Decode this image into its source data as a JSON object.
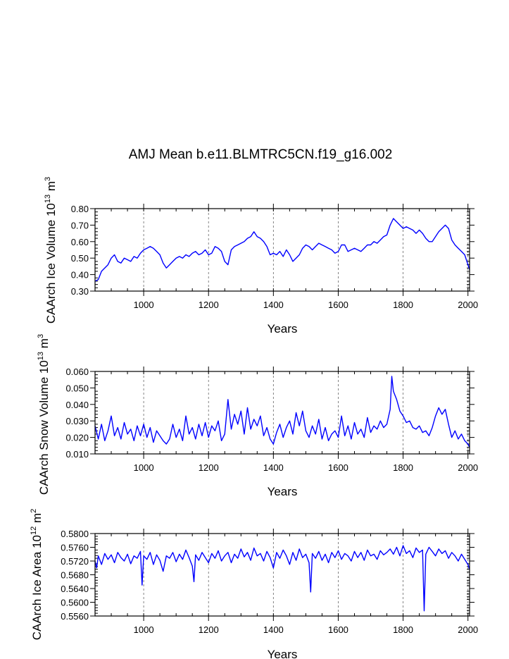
{
  "title": "AMJ Mean b.e11.BLMTRC5CN.f19_g16.002",
  "series_color": "#0000ff",
  "chart_data": [
    {
      "type": "line",
      "name": "ice-volume",
      "ylabel": "CAArch Ice Volume 10",
      "ylabel_sup": "13",
      "ylabel_unit": " m",
      "ylabel_unit_sup": "3",
      "xlabel": "Years",
      "xlim": [
        850,
        2005
      ],
      "ylim": [
        0.3,
        0.8
      ],
      "yticks": [
        "0.30",
        "0.40",
        "0.50",
        "0.60",
        "0.70",
        "0.80"
      ],
      "xticks": [
        "1000",
        "1200",
        "1400",
        "1600",
        "1800",
        "2000"
      ],
      "grid_x": [
        1000,
        1200,
        1400,
        1600,
        1800,
        2000
      ],
      "x": [
        850,
        860,
        870,
        880,
        890,
        900,
        910,
        920,
        930,
        940,
        950,
        960,
        970,
        980,
        990,
        1000,
        1010,
        1020,
        1030,
        1040,
        1050,
        1060,
        1070,
        1080,
        1090,
        1100,
        1110,
        1120,
        1130,
        1140,
        1150,
        1160,
        1170,
        1180,
        1190,
        1200,
        1210,
        1220,
        1230,
        1240,
        1250,
        1260,
        1270,
        1280,
        1290,
        1300,
        1310,
        1320,
        1330,
        1340,
        1350,
        1360,
        1370,
        1380,
        1390,
        1400,
        1410,
        1420,
        1430,
        1440,
        1450,
        1460,
        1470,
        1480,
        1490,
        1500,
        1510,
        1520,
        1530,
        1540,
        1550,
        1560,
        1570,
        1580,
        1590,
        1600,
        1610,
        1620,
        1630,
        1640,
        1650,
        1660,
        1670,
        1680,
        1690,
        1700,
        1710,
        1720,
        1730,
        1740,
        1750,
        1760,
        1770,
        1780,
        1790,
        1800,
        1810,
        1820,
        1830,
        1840,
        1850,
        1860,
        1870,
        1880,
        1890,
        1900,
        1910,
        1920,
        1930,
        1940,
        1950,
        1960,
        1970,
        1980,
        1990,
        2000,
        2005
      ],
      "values": [
        0.36,
        0.37,
        0.42,
        0.44,
        0.46,
        0.5,
        0.52,
        0.48,
        0.47,
        0.5,
        0.49,
        0.48,
        0.51,
        0.5,
        0.53,
        0.55,
        0.56,
        0.57,
        0.56,
        0.54,
        0.52,
        0.47,
        0.44,
        0.46,
        0.48,
        0.5,
        0.51,
        0.5,
        0.52,
        0.51,
        0.53,
        0.54,
        0.52,
        0.53,
        0.55,
        0.52,
        0.53,
        0.57,
        0.56,
        0.54,
        0.48,
        0.46,
        0.55,
        0.57,
        0.58,
        0.59,
        0.6,
        0.62,
        0.63,
        0.66,
        0.63,
        0.62,
        0.6,
        0.57,
        0.52,
        0.53,
        0.52,
        0.54,
        0.51,
        0.55,
        0.52,
        0.48,
        0.5,
        0.52,
        0.56,
        0.58,
        0.57,
        0.55,
        0.57,
        0.59,
        0.58,
        0.57,
        0.56,
        0.55,
        0.53,
        0.54,
        0.58,
        0.58,
        0.54,
        0.55,
        0.56,
        0.55,
        0.54,
        0.56,
        0.58,
        0.58,
        0.6,
        0.59,
        0.61,
        0.63,
        0.64,
        0.7,
        0.74,
        0.72,
        0.7,
        0.68,
        0.69,
        0.68,
        0.67,
        0.65,
        0.67,
        0.65,
        0.62,
        0.6,
        0.6,
        0.63,
        0.66,
        0.68,
        0.7,
        0.68,
        0.61,
        0.58,
        0.56,
        0.54,
        0.52,
        0.46,
        0.43
      ]
    },
    {
      "type": "line",
      "name": "snow-volume",
      "ylabel": "CAArch Snow Volume 10",
      "ylabel_sup": "13",
      "ylabel_unit": " m",
      "ylabel_unit_sup": "3",
      "xlabel": "Years",
      "xlim": [
        850,
        2005
      ],
      "ylim": [
        0.01,
        0.06
      ],
      "yticks": [
        "0.010",
        "0.020",
        "0.030",
        "0.040",
        "0.050",
        "0.060"
      ],
      "xticks": [
        "1000",
        "1200",
        "1400",
        "1600",
        "1800",
        "2000"
      ],
      "grid_x": [
        1000,
        1200,
        1400,
        1600,
        1800,
        2000
      ],
      "x": [
        850,
        860,
        870,
        880,
        890,
        900,
        910,
        920,
        930,
        940,
        950,
        960,
        970,
        980,
        990,
        1000,
        1010,
        1020,
        1030,
        1040,
        1050,
        1060,
        1070,
        1080,
        1090,
        1100,
        1110,
        1120,
        1130,
        1140,
        1150,
        1160,
        1170,
        1180,
        1190,
        1200,
        1210,
        1220,
        1230,
        1240,
        1250,
        1260,
        1270,
        1280,
        1290,
        1300,
        1310,
        1320,
        1330,
        1340,
        1350,
        1360,
        1370,
        1380,
        1390,
        1400,
        1410,
        1420,
        1430,
        1440,
        1450,
        1460,
        1470,
        1480,
        1490,
        1500,
        1510,
        1520,
        1530,
        1540,
        1550,
        1560,
        1570,
        1580,
        1590,
        1600,
        1610,
        1620,
        1630,
        1640,
        1650,
        1660,
        1670,
        1680,
        1690,
        1700,
        1710,
        1720,
        1730,
        1740,
        1750,
        1760,
        1765,
        1770,
        1780,
        1790,
        1800,
        1810,
        1820,
        1830,
        1840,
        1850,
        1860,
        1870,
        1880,
        1890,
        1900,
        1910,
        1920,
        1930,
        1940,
        1950,
        1960,
        1970,
        1980,
        1990,
        2000,
        2005
      ],
      "values": [
        0.027,
        0.019,
        0.028,
        0.018,
        0.024,
        0.033,
        0.021,
        0.026,
        0.019,
        0.029,
        0.022,
        0.025,
        0.018,
        0.027,
        0.021,
        0.028,
        0.02,
        0.026,
        0.017,
        0.024,
        0.021,
        0.018,
        0.016,
        0.019,
        0.028,
        0.02,
        0.025,
        0.018,
        0.033,
        0.022,
        0.026,
        0.019,
        0.028,
        0.021,
        0.029,
        0.02,
        0.027,
        0.024,
        0.03,
        0.018,
        0.022,
        0.043,
        0.025,
        0.034,
        0.028,
        0.036,
        0.022,
        0.038,
        0.025,
        0.031,
        0.027,
        0.033,
        0.021,
        0.026,
        0.019,
        0.016,
        0.023,
        0.028,
        0.02,
        0.026,
        0.03,
        0.022,
        0.035,
        0.027,
        0.036,
        0.024,
        0.02,
        0.027,
        0.022,
        0.031,
        0.019,
        0.026,
        0.018,
        0.022,
        0.024,
        0.02,
        0.033,
        0.021,
        0.027,
        0.019,
        0.029,
        0.022,
        0.025,
        0.02,
        0.032,
        0.023,
        0.027,
        0.025,
        0.03,
        0.026,
        0.028,
        0.037,
        0.057,
        0.048,
        0.043,
        0.036,
        0.033,
        0.029,
        0.03,
        0.026,
        0.025,
        0.027,
        0.023,
        0.024,
        0.021,
        0.026,
        0.033,
        0.038,
        0.034,
        0.037,
        0.028,
        0.02,
        0.024,
        0.019,
        0.022,
        0.018,
        0.016,
        0.014
      ]
    },
    {
      "type": "line",
      "name": "ice-area",
      "ylabel": "CAArch Ice Area 10",
      "ylabel_sup": "12",
      "ylabel_unit": " m",
      "ylabel_unit_sup": "2",
      "xlabel": "Years",
      "xlim": [
        850,
        2005
      ],
      "ylim": [
        0.556,
        0.58
      ],
      "yticks": [
        "0.5560",
        "0.5600",
        "0.5640",
        "0.5680",
        "0.5720",
        "0.5760",
        "0.5800"
      ],
      "xticks": [
        "1000",
        "1200",
        "1400",
        "1600",
        "1800",
        "2000"
      ],
      "grid_x": [
        1000,
        1200,
        1400,
        1600,
        1800,
        2000
      ],
      "x": [
        850,
        855,
        860,
        870,
        880,
        890,
        900,
        910,
        920,
        930,
        940,
        950,
        960,
        970,
        980,
        990,
        995,
        1000,
        1010,
        1020,
        1030,
        1040,
        1050,
        1060,
        1070,
        1080,
        1090,
        1100,
        1110,
        1120,
        1130,
        1140,
        1150,
        1155,
        1160,
        1170,
        1180,
        1190,
        1200,
        1210,
        1220,
        1230,
        1240,
        1250,
        1260,
        1270,
        1280,
        1290,
        1300,
        1310,
        1320,
        1330,
        1340,
        1350,
        1360,
        1370,
        1380,
        1390,
        1400,
        1410,
        1420,
        1430,
        1440,
        1450,
        1460,
        1470,
        1480,
        1490,
        1500,
        1510,
        1515,
        1520,
        1530,
        1540,
        1550,
        1560,
        1570,
        1580,
        1590,
        1600,
        1610,
        1620,
        1630,
        1640,
        1650,
        1660,
        1670,
        1680,
        1690,
        1700,
        1710,
        1720,
        1730,
        1740,
        1750,
        1760,
        1770,
        1780,
        1790,
        1800,
        1810,
        1820,
        1830,
        1840,
        1850,
        1860,
        1865,
        1870,
        1880,
        1890,
        1900,
        1910,
        1920,
        1930,
        1940,
        1950,
        1960,
        1970,
        1980,
        1990,
        2000,
        2005
      ],
      "values": [
        0.572,
        0.57,
        0.5735,
        0.571,
        0.5742,
        0.5725,
        0.5738,
        0.5715,
        0.5745,
        0.573,
        0.572,
        0.574,
        0.5712,
        0.5735,
        0.5728,
        0.5748,
        0.565,
        0.5735,
        0.5725,
        0.5745,
        0.571,
        0.5738,
        0.5722,
        0.569,
        0.5735,
        0.5728,
        0.5745,
        0.5718,
        0.574,
        0.5725,
        0.5752,
        0.573,
        0.5705,
        0.566,
        0.5738,
        0.5722,
        0.5745,
        0.573,
        0.5715,
        0.5742,
        0.5728,
        0.575,
        0.572,
        0.5735,
        0.5745,
        0.5715,
        0.574,
        0.5728,
        0.5755,
        0.5732,
        0.5745,
        0.5722,
        0.5758,
        0.5735,
        0.5742,
        0.572,
        0.5748,
        0.573,
        0.57,
        0.5745,
        0.5728,
        0.5752,
        0.5735,
        0.571,
        0.5745,
        0.5722,
        0.5755,
        0.573,
        0.574,
        0.5715,
        0.563,
        0.5742,
        0.5728,
        0.5748,
        0.5722,
        0.574,
        0.5715,
        0.5745,
        0.573,
        0.575,
        0.5725,
        0.5742,
        0.5735,
        0.572,
        0.5748,
        0.573,
        0.5745,
        0.5722,
        0.5752,
        0.5735,
        0.574,
        0.5725,
        0.575,
        0.5738,
        0.5745,
        0.5755,
        0.574,
        0.576,
        0.5735,
        0.5765,
        0.5742,
        0.575,
        0.573,
        0.5758,
        0.5745,
        0.5752,
        0.5575,
        0.574,
        0.576,
        0.5748,
        0.5735,
        0.5755,
        0.5742,
        0.575,
        0.5728,
        0.5745,
        0.5735,
        0.572,
        0.574,
        0.5725,
        0.571,
        0.5695
      ]
    }
  ]
}
